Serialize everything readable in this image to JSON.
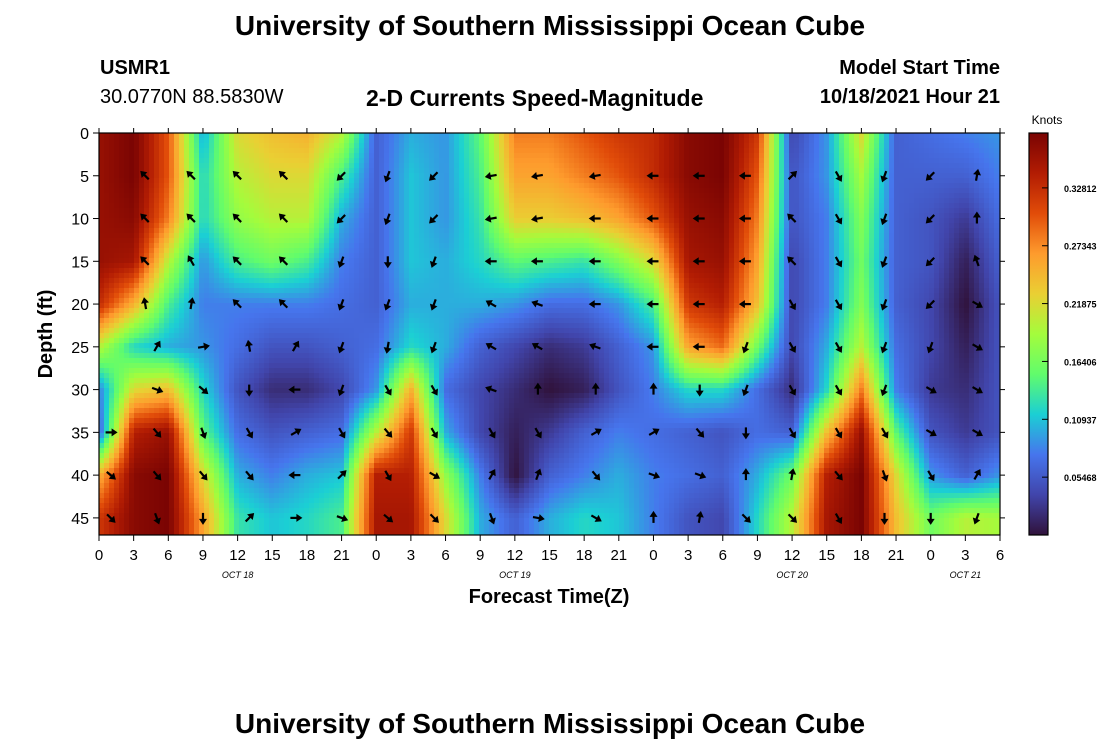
{
  "page": {
    "title": "University of Southern Mississippi Ocean Cube",
    "station_id": "USMR1",
    "location": "30.0770N  88.5830W",
    "subtitle": "2-D Currents Speed-Magnitude",
    "start_label": "Model Start Time",
    "start_value": "10/18/2021 Hour 21",
    "footer_title": "University of Southern Mississippi Ocean Cube"
  },
  "chart_data": {
    "type": "heatmap",
    "title": "2-D Currents Speed-Magnitude",
    "xlabel": "Forecast Time(Z)",
    "ylabel": "Depth (ft)",
    "x_ticks": [
      "0",
      "3",
      "6",
      "9",
      "12",
      "15",
      "18",
      "21",
      "0",
      "3",
      "6",
      "9",
      "12",
      "15",
      "18",
      "21",
      "0",
      "3",
      "6",
      "9",
      "12",
      "15",
      "18",
      "21",
      "0",
      "3",
      "6"
    ],
    "x_hours": [
      0,
      78
    ],
    "date_labels": [
      {
        "label": "OCT 18",
        "hour": 12
      },
      {
        "label": "OCT 19",
        "hour": 36
      },
      {
        "label": "OCT 20",
        "hour": 60
      },
      {
        "label": "OCT 21",
        "hour": 75
      }
    ],
    "y_ticks": [
      0,
      5,
      10,
      15,
      20,
      25,
      30,
      35,
      40,
      45
    ],
    "ylim": [
      0,
      47
    ],
    "colorbar": {
      "label": "Knots",
      "ticks": [
        "0.32812",
        "0.27343",
        "0.21875",
        "0.16406",
        "0.10937",
        "0.05468"
      ],
      "tick_values": [
        0.32812,
        0.27343,
        0.21875,
        0.16406,
        0.10937,
        0.05468
      ],
      "range": [
        0.0,
        0.38
      ]
    },
    "depths_ft": [
      0,
      5,
      10,
      15,
      20,
      25,
      30,
      35,
      40,
      45
    ],
    "times_h": [
      0,
      3,
      6,
      9,
      12,
      15,
      18,
      21,
      24,
      27,
      30,
      33,
      36,
      39,
      42,
      45,
      48,
      51,
      54,
      57,
      60,
      63,
      66,
      69,
      72,
      75,
      78
    ],
    "speed_knots": [
      [
        0.36,
        0.38,
        0.3,
        0.1,
        0.22,
        0.24,
        0.25,
        0.2,
        0.06,
        0.1,
        0.09,
        0.15,
        0.28,
        0.28,
        0.3,
        0.32,
        0.33,
        0.37,
        0.38,
        0.32,
        0.04,
        0.09,
        0.22,
        0.06,
        0.07,
        0.08,
        0.09
      ],
      [
        0.36,
        0.38,
        0.3,
        0.12,
        0.2,
        0.22,
        0.22,
        0.14,
        0.06,
        0.11,
        0.09,
        0.14,
        0.26,
        0.26,
        0.28,
        0.3,
        0.33,
        0.37,
        0.38,
        0.3,
        0.05,
        0.09,
        0.19,
        0.06,
        0.06,
        0.06,
        0.08
      ],
      [
        0.36,
        0.37,
        0.28,
        0.12,
        0.18,
        0.2,
        0.2,
        0.1,
        0.06,
        0.11,
        0.09,
        0.13,
        0.23,
        0.23,
        0.24,
        0.26,
        0.3,
        0.36,
        0.37,
        0.28,
        0.05,
        0.08,
        0.17,
        0.06,
        0.05,
        0.03,
        0.07
      ],
      [
        0.36,
        0.35,
        0.2,
        0.09,
        0.14,
        0.16,
        0.14,
        0.08,
        0.06,
        0.11,
        0.1,
        0.12,
        0.15,
        0.14,
        0.13,
        0.17,
        0.22,
        0.35,
        0.36,
        0.26,
        0.04,
        0.08,
        0.16,
        0.06,
        0.05,
        0.01,
        0.06
      ],
      [
        0.33,
        0.25,
        0.14,
        0.08,
        0.08,
        0.08,
        0.08,
        0.07,
        0.06,
        0.1,
        0.1,
        0.1,
        0.09,
        0.07,
        0.07,
        0.09,
        0.14,
        0.32,
        0.34,
        0.24,
        0.04,
        0.08,
        0.17,
        0.06,
        0.04,
        0.0,
        0.05
      ],
      [
        0.2,
        0.12,
        0.1,
        0.09,
        0.07,
        0.05,
        0.05,
        0.06,
        0.07,
        0.12,
        0.1,
        0.06,
        0.04,
        0.02,
        0.03,
        0.06,
        0.09,
        0.26,
        0.29,
        0.16,
        0.04,
        0.1,
        0.2,
        0.07,
        0.04,
        0.01,
        0.05
      ],
      [
        0.08,
        0.22,
        0.24,
        0.12,
        0.05,
        0.02,
        0.02,
        0.04,
        0.09,
        0.25,
        0.07,
        0.04,
        0.02,
        0.0,
        0.01,
        0.05,
        0.08,
        0.12,
        0.12,
        0.07,
        0.02,
        0.12,
        0.28,
        0.08,
        0.03,
        0.02,
        0.05
      ],
      [
        0.06,
        0.34,
        0.36,
        0.15,
        0.07,
        0.05,
        0.06,
        0.07,
        0.2,
        0.32,
        0.1,
        0.04,
        0.01,
        0.03,
        0.06,
        0.08,
        0.07,
        0.06,
        0.05,
        0.07,
        0.06,
        0.24,
        0.36,
        0.15,
        0.05,
        0.03,
        0.05
      ],
      [
        0.25,
        0.37,
        0.38,
        0.22,
        0.1,
        0.08,
        0.1,
        0.11,
        0.34,
        0.34,
        0.18,
        0.08,
        0.0,
        0.06,
        0.08,
        0.1,
        0.08,
        0.07,
        0.06,
        0.1,
        0.16,
        0.34,
        0.38,
        0.22,
        0.09,
        0.06,
        0.09
      ],
      [
        0.32,
        0.37,
        0.38,
        0.26,
        0.13,
        0.11,
        0.12,
        0.14,
        0.35,
        0.35,
        0.22,
        0.1,
        0.06,
        0.1,
        0.12,
        0.11,
        0.08,
        0.05,
        0.04,
        0.12,
        0.2,
        0.35,
        0.38,
        0.24,
        0.16,
        0.2,
        0.19
      ]
    ],
    "arrows": [
      {
        "t": 4,
        "d": 5,
        "dir": 315
      },
      {
        "t": 8,
        "d": 5,
        "dir": 315
      },
      {
        "t": 12,
        "d": 5,
        "dir": 315
      },
      {
        "t": 16,
        "d": 5,
        "dir": 315
      },
      {
        "t": 21,
        "d": 5,
        "dir": 225
      },
      {
        "t": 25,
        "d": 5,
        "dir": 200
      },
      {
        "t": 29,
        "d": 5,
        "dir": 225
      },
      {
        "t": 34,
        "d": 5,
        "dir": 260
      },
      {
        "t": 38,
        "d": 5,
        "dir": 260
      },
      {
        "t": 43,
        "d": 5,
        "dir": 260
      },
      {
        "t": 48,
        "d": 5,
        "dir": 270
      },
      {
        "t": 52,
        "d": 5,
        "dir": 270
      },
      {
        "t": 56,
        "d": 5,
        "dir": 270
      },
      {
        "t": 60,
        "d": 5,
        "dir": 45
      },
      {
        "t": 64,
        "d": 5,
        "dir": 150
      },
      {
        "t": 68,
        "d": 5,
        "dir": 200
      },
      {
        "t": 72,
        "d": 5,
        "dir": 225
      },
      {
        "t": 76,
        "d": 5,
        "dir": 10
      },
      {
        "t": 4,
        "d": 10,
        "dir": 315
      },
      {
        "t": 8,
        "d": 10,
        "dir": 315
      },
      {
        "t": 12,
        "d": 10,
        "dir": 315
      },
      {
        "t": 16,
        "d": 10,
        "dir": 315
      },
      {
        "t": 21,
        "d": 10,
        "dir": 225
      },
      {
        "t": 25,
        "d": 10,
        "dir": 200
      },
      {
        "t": 29,
        "d": 10,
        "dir": 225
      },
      {
        "t": 34,
        "d": 10,
        "dir": 260
      },
      {
        "t": 38,
        "d": 10,
        "dir": 260
      },
      {
        "t": 43,
        "d": 10,
        "dir": 270
      },
      {
        "t": 48,
        "d": 10,
        "dir": 270
      },
      {
        "t": 52,
        "d": 10,
        "dir": 270
      },
      {
        "t": 56,
        "d": 10,
        "dir": 270
      },
      {
        "t": 60,
        "d": 10,
        "dir": 315
      },
      {
        "t": 64,
        "d": 10,
        "dir": 150
      },
      {
        "t": 68,
        "d": 10,
        "dir": 200
      },
      {
        "t": 72,
        "d": 10,
        "dir": 225
      },
      {
        "t": 76,
        "d": 10,
        "dir": 0
      },
      {
        "t": 4,
        "d": 15,
        "dir": 315
      },
      {
        "t": 8,
        "d": 15,
        "dir": 330
      },
      {
        "t": 12,
        "d": 15,
        "dir": 315
      },
      {
        "t": 16,
        "d": 15,
        "dir": 315
      },
      {
        "t": 21,
        "d": 15,
        "dir": 200
      },
      {
        "t": 25,
        "d": 15,
        "dir": 180
      },
      {
        "t": 29,
        "d": 15,
        "dir": 200
      },
      {
        "t": 34,
        "d": 15,
        "dir": 270
      },
      {
        "t": 38,
        "d": 15,
        "dir": 270
      },
      {
        "t": 43,
        "d": 15,
        "dir": 270
      },
      {
        "t": 48,
        "d": 15,
        "dir": 270
      },
      {
        "t": 52,
        "d": 15,
        "dir": 270
      },
      {
        "t": 56,
        "d": 15,
        "dir": 270
      },
      {
        "t": 60,
        "d": 15,
        "dir": 315
      },
      {
        "t": 64,
        "d": 15,
        "dir": 150
      },
      {
        "t": 68,
        "d": 15,
        "dir": 200
      },
      {
        "t": 72,
        "d": 15,
        "dir": 225
      },
      {
        "t": 76,
        "d": 15,
        "dir": 340
      },
      {
        "t": 4,
        "d": 20,
        "dir": 350
      },
      {
        "t": 8,
        "d": 20,
        "dir": 10
      },
      {
        "t": 12,
        "d": 20,
        "dir": 315
      },
      {
        "t": 16,
        "d": 20,
        "dir": 315
      },
      {
        "t": 21,
        "d": 20,
        "dir": 200
      },
      {
        "t": 25,
        "d": 20,
        "dir": 200
      },
      {
        "t": 29,
        "d": 20,
        "dir": 200
      },
      {
        "t": 34,
        "d": 20,
        "dir": 300
      },
      {
        "t": 38,
        "d": 20,
        "dir": 290
      },
      {
        "t": 43,
        "d": 20,
        "dir": 270
      },
      {
        "t": 48,
        "d": 20,
        "dir": 270
      },
      {
        "t": 52,
        "d": 20,
        "dir": 270
      },
      {
        "t": 56,
        "d": 20,
        "dir": 270
      },
      {
        "t": 60,
        "d": 20,
        "dir": 150
      },
      {
        "t": 64,
        "d": 20,
        "dir": 150
      },
      {
        "t": 68,
        "d": 20,
        "dir": 200
      },
      {
        "t": 72,
        "d": 20,
        "dir": 225
      },
      {
        "t": 76,
        "d": 20,
        "dir": 120
      },
      {
        "t": 5,
        "d": 25,
        "dir": 30
      },
      {
        "t": 9,
        "d": 25,
        "dir": 80
      },
      {
        "t": 13,
        "d": 25,
        "dir": 350
      },
      {
        "t": 17,
        "d": 25,
        "dir": 30
      },
      {
        "t": 21,
        "d": 25,
        "dir": 200
      },
      {
        "t": 25,
        "d": 25,
        "dir": 190
      },
      {
        "t": 29,
        "d": 25,
        "dir": 200
      },
      {
        "t": 34,
        "d": 25,
        "dir": 300
      },
      {
        "t": 38,
        "d": 25,
        "dir": 300
      },
      {
        "t": 43,
        "d": 25,
        "dir": 290
      },
      {
        "t": 48,
        "d": 25,
        "dir": 270
      },
      {
        "t": 52,
        "d": 25,
        "dir": 270
      },
      {
        "t": 56,
        "d": 25,
        "dir": 200
      },
      {
        "t": 60,
        "d": 25,
        "dir": 150
      },
      {
        "t": 64,
        "d": 25,
        "dir": 150
      },
      {
        "t": 68,
        "d": 25,
        "dir": 200
      },
      {
        "t": 72,
        "d": 25,
        "dir": 200
      },
      {
        "t": 76,
        "d": 25,
        "dir": 120
      },
      {
        "t": 5,
        "d": 30,
        "dir": 110
      },
      {
        "t": 9,
        "d": 30,
        "dir": 130
      },
      {
        "t": 13,
        "d": 30,
        "dir": 180
      },
      {
        "t": 17,
        "d": 30,
        "dir": 270
      },
      {
        "t": 21,
        "d": 30,
        "dir": 200
      },
      {
        "t": 25,
        "d": 30,
        "dir": 150
      },
      {
        "t": 29,
        "d": 30,
        "dir": 150
      },
      {
        "t": 34,
        "d": 30,
        "dir": 290
      },
      {
        "t": 38,
        "d": 30,
        "dir": 0
      },
      {
        "t": 43,
        "d": 30,
        "dir": 0
      },
      {
        "t": 48,
        "d": 30,
        "dir": 0
      },
      {
        "t": 52,
        "d": 30,
        "dir": 180
      },
      {
        "t": 56,
        "d": 30,
        "dir": 200
      },
      {
        "t": 60,
        "d": 30,
        "dir": 150
      },
      {
        "t": 64,
        "d": 30,
        "dir": 150
      },
      {
        "t": 68,
        "d": 30,
        "dir": 200
      },
      {
        "t": 72,
        "d": 30,
        "dir": 120
      },
      {
        "t": 76,
        "d": 30,
        "dir": 120
      },
      {
        "t": 1,
        "d": 35,
        "dir": 90
      },
      {
        "t": 5,
        "d": 35,
        "dir": 140
      },
      {
        "t": 9,
        "d": 35,
        "dir": 160
      },
      {
        "t": 13,
        "d": 35,
        "dir": 150
      },
      {
        "t": 17,
        "d": 35,
        "dir": 60
      },
      {
        "t": 21,
        "d": 35,
        "dir": 150
      },
      {
        "t": 25,
        "d": 35,
        "dir": 140
      },
      {
        "t": 29,
        "d": 35,
        "dir": 150
      },
      {
        "t": 34,
        "d": 35,
        "dir": 150
      },
      {
        "t": 38,
        "d": 35,
        "dir": 150
      },
      {
        "t": 43,
        "d": 35,
        "dir": 60
      },
      {
        "t": 48,
        "d": 35,
        "dir": 60
      },
      {
        "t": 52,
        "d": 35,
        "dir": 140
      },
      {
        "t": 56,
        "d": 35,
        "dir": 180
      },
      {
        "t": 60,
        "d": 35,
        "dir": 150
      },
      {
        "t": 64,
        "d": 35,
        "dir": 150
      },
      {
        "t": 68,
        "d": 35,
        "dir": 150
      },
      {
        "t": 72,
        "d": 35,
        "dir": 120
      },
      {
        "t": 76,
        "d": 35,
        "dir": 120
      },
      {
        "t": 1,
        "d": 40,
        "dir": 130
      },
      {
        "t": 5,
        "d": 40,
        "dir": 140
      },
      {
        "t": 9,
        "d": 40,
        "dir": 140
      },
      {
        "t": 13,
        "d": 40,
        "dir": 140
      },
      {
        "t": 17,
        "d": 40,
        "dir": 270
      },
      {
        "t": 21,
        "d": 40,
        "dir": 45
      },
      {
        "t": 25,
        "d": 40,
        "dir": 150
      },
      {
        "t": 29,
        "d": 40,
        "dir": 120
      },
      {
        "t": 34,
        "d": 40,
        "dir": 30
      },
      {
        "t": 38,
        "d": 40,
        "dir": 20
      },
      {
        "t": 43,
        "d": 40,
        "dir": 140
      },
      {
        "t": 48,
        "d": 40,
        "dir": 110
      },
      {
        "t": 52,
        "d": 40,
        "dir": 110
      },
      {
        "t": 56,
        "d": 40,
        "dir": 0
      },
      {
        "t": 60,
        "d": 40,
        "dir": 10
      },
      {
        "t": 64,
        "d": 40,
        "dir": 140
      },
      {
        "t": 68,
        "d": 40,
        "dir": 160
      },
      {
        "t": 72,
        "d": 40,
        "dir": 150
      },
      {
        "t": 76,
        "d": 40,
        "dir": 30
      },
      {
        "t": 1,
        "d": 45,
        "dir": 135
      },
      {
        "t": 5,
        "d": 45,
        "dir": 160
      },
      {
        "t": 9,
        "d": 45,
        "dir": 180
      },
      {
        "t": 13,
        "d": 45,
        "dir": 45
      },
      {
        "t": 17,
        "d": 45,
        "dir": 90
      },
      {
        "t": 21,
        "d": 45,
        "dir": 110
      },
      {
        "t": 25,
        "d": 45,
        "dir": 130
      },
      {
        "t": 29,
        "d": 45,
        "dir": 135
      },
      {
        "t": 34,
        "d": 45,
        "dir": 160
      },
      {
        "t": 38,
        "d": 45,
        "dir": 100
      },
      {
        "t": 43,
        "d": 45,
        "dir": 120
      },
      {
        "t": 48,
        "d": 45,
        "dir": 0
      },
      {
        "t": 52,
        "d": 45,
        "dir": 10
      },
      {
        "t": 56,
        "d": 45,
        "dir": 135
      },
      {
        "t": 60,
        "d": 45,
        "dir": 135
      },
      {
        "t": 64,
        "d": 45,
        "dir": 150
      },
      {
        "t": 68,
        "d": 45,
        "dir": 180
      },
      {
        "t": 72,
        "d": 45,
        "dir": 180
      },
      {
        "t": 76,
        "d": 45,
        "dir": 200
      }
    ]
  }
}
